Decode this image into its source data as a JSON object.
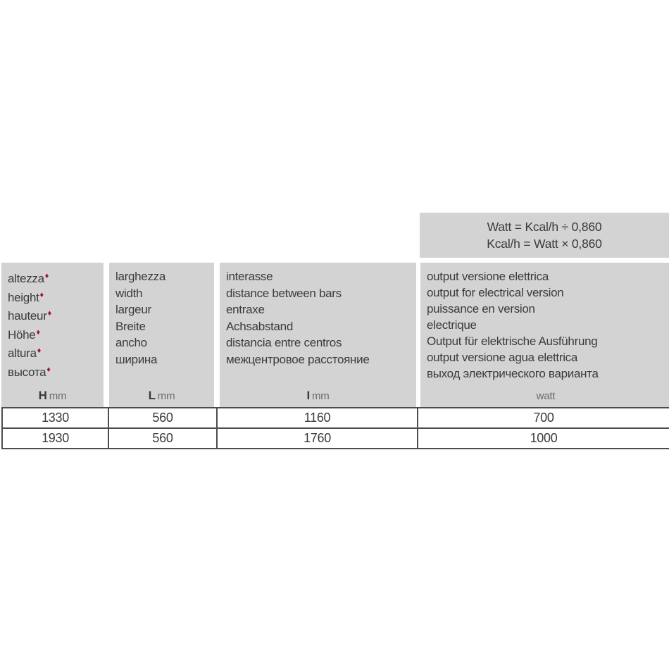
{
  "formulas": {
    "line1": "Watt = Kcal/h ÷ 0,860",
    "line2": "Kcal/h = Watt × 0,860"
  },
  "symbols": {
    "diamond": "♦"
  },
  "colors": {
    "header_bg": "#d3d3d3",
    "diamond_red": "#a51428",
    "border": "#4d4d4d",
    "text": "#3b3b3b"
  },
  "header": {
    "col1": {
      "labels": [
        "altezza",
        "height",
        "hauteur",
        "Höhe",
        "altura",
        "высота"
      ],
      "unit_bold": "H",
      "unit": "mm"
    },
    "col2": {
      "labels": [
        "larghezza",
        "width",
        "largeur",
        "Breite",
        "ancho",
        "ширина"
      ],
      "unit_bold": "L",
      "unit": "mm"
    },
    "col3": {
      "labels": [
        "interasse",
        "distance between bars",
        "entraxe",
        "Achsabstand",
        "distancia entre centros",
        "межцентровое расстояние"
      ],
      "unit_bold": "I",
      "unit": "mm"
    },
    "col4": {
      "labels": [
        "output versione elettrica",
        "output for electrical version",
        "puissance en version",
        "electrique",
        "Output für elektrische Ausführung",
        "output versione agua elettrica",
        "выход электрического варианта"
      ],
      "unit_bold": "",
      "unit": "watt"
    }
  },
  "table": {
    "rows": [
      [
        "1330",
        "560",
        "1160",
        "700"
      ],
      [
        "1930",
        "560",
        "1760",
        "1000"
      ]
    ]
  }
}
